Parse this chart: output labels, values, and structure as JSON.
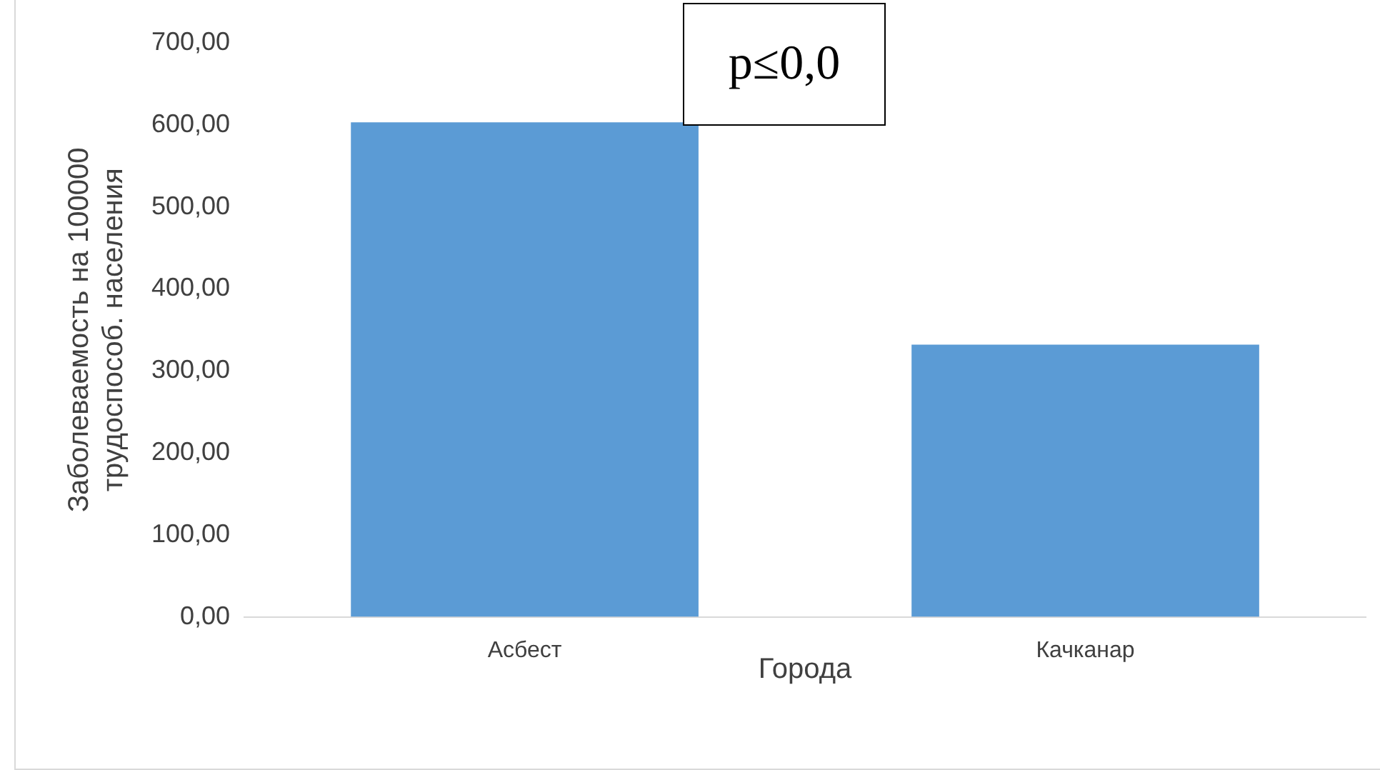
{
  "chart_data": {
    "type": "bar",
    "categories": [
      "Асбест",
      "Качканар"
    ],
    "values": [
      603,
      332
    ],
    "color": "#5b9bd5",
    "xlabel": "Города",
    "ylabel": "Заболеваемость на 100000\nтрудоспособ. населения",
    "ylim": [
      0,
      700
    ],
    "yticks": [
      {
        "value": 0,
        "label": "0,00"
      },
      {
        "value": 100,
        "label": "100,00"
      },
      {
        "value": 200,
        "label": "200,00"
      },
      {
        "value": 300,
        "label": "300,00"
      },
      {
        "value": 400,
        "label": "400,00"
      },
      {
        "value": 500,
        "label": "500,00"
      },
      {
        "value": 600,
        "label": "600,00"
      },
      {
        "value": 700,
        "label": "700,00"
      }
    ],
    "annotations": [
      "p≤0,0"
    ],
    "grid": false,
    "legend": false
  }
}
